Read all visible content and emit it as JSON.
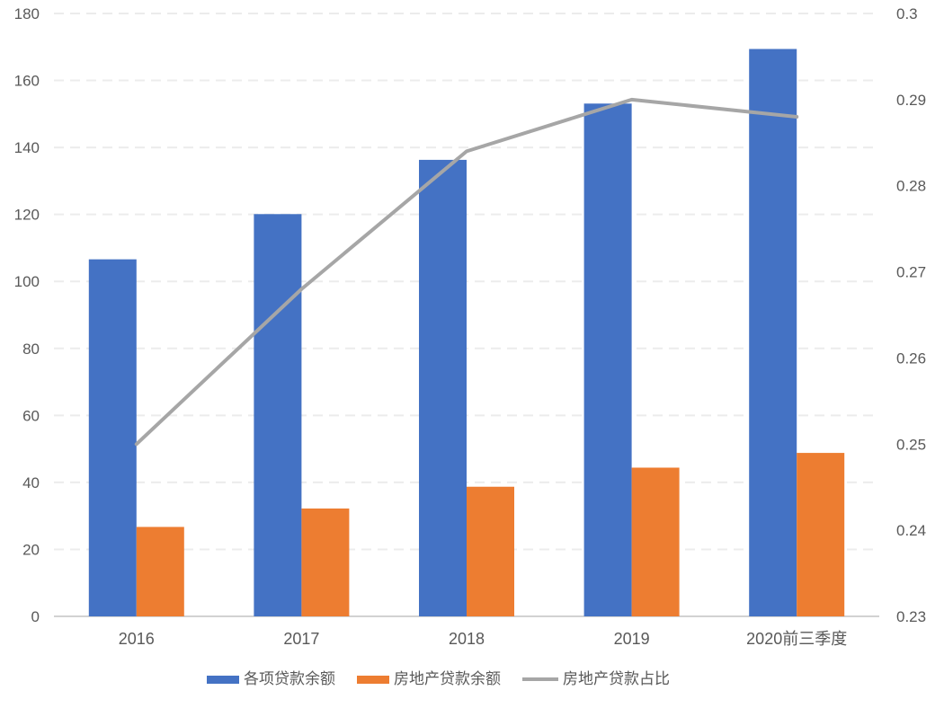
{
  "chart_data": {
    "type": "combo",
    "subtype": "grouped-bar-with-line-dual-axis",
    "categories": [
      "2016",
      "2017",
      "2018",
      "2019",
      "2020前三季度"
    ],
    "series": [
      {
        "name": "各项贷款余额",
        "kind": "bar",
        "axis": "left",
        "color": "#4472C4",
        "values": [
          106.6,
          120.1,
          136.3,
          153.1,
          169.4
        ]
      },
      {
        "name": "房地产贷款余额",
        "kind": "bar",
        "axis": "left",
        "color": "#ED7D31",
        "values": [
          26.7,
          32.2,
          38.7,
          44.4,
          48.8
        ]
      },
      {
        "name": "房地产贷款占比",
        "kind": "line",
        "axis": "right",
        "color": "#A6A6A6",
        "values": [
          0.25,
          0.268,
          0.284,
          0.29,
          0.288
        ]
      }
    ],
    "left_axis": {
      "min": 0,
      "max": 180,
      "step": 20,
      "tick_labels": [
        "0",
        "20",
        "40",
        "60",
        "80",
        "100",
        "120",
        "140",
        "160",
        "180"
      ]
    },
    "right_axis": {
      "min": 0.23,
      "max": 0.3,
      "step": 0.01,
      "tick_labels": [
        "0.23",
        "0.24",
        "0.25",
        "0.26",
        "0.27",
        "0.28",
        "0.29",
        "0.3"
      ]
    },
    "title": "",
    "xlabel": "",
    "ylabel": "",
    "grid": "horizontal-dashed",
    "legend_position": "bottom",
    "colors": {
      "axis_text": "#595959",
      "gridline": "#ececec",
      "baseline": "#d2d2d2"
    }
  }
}
